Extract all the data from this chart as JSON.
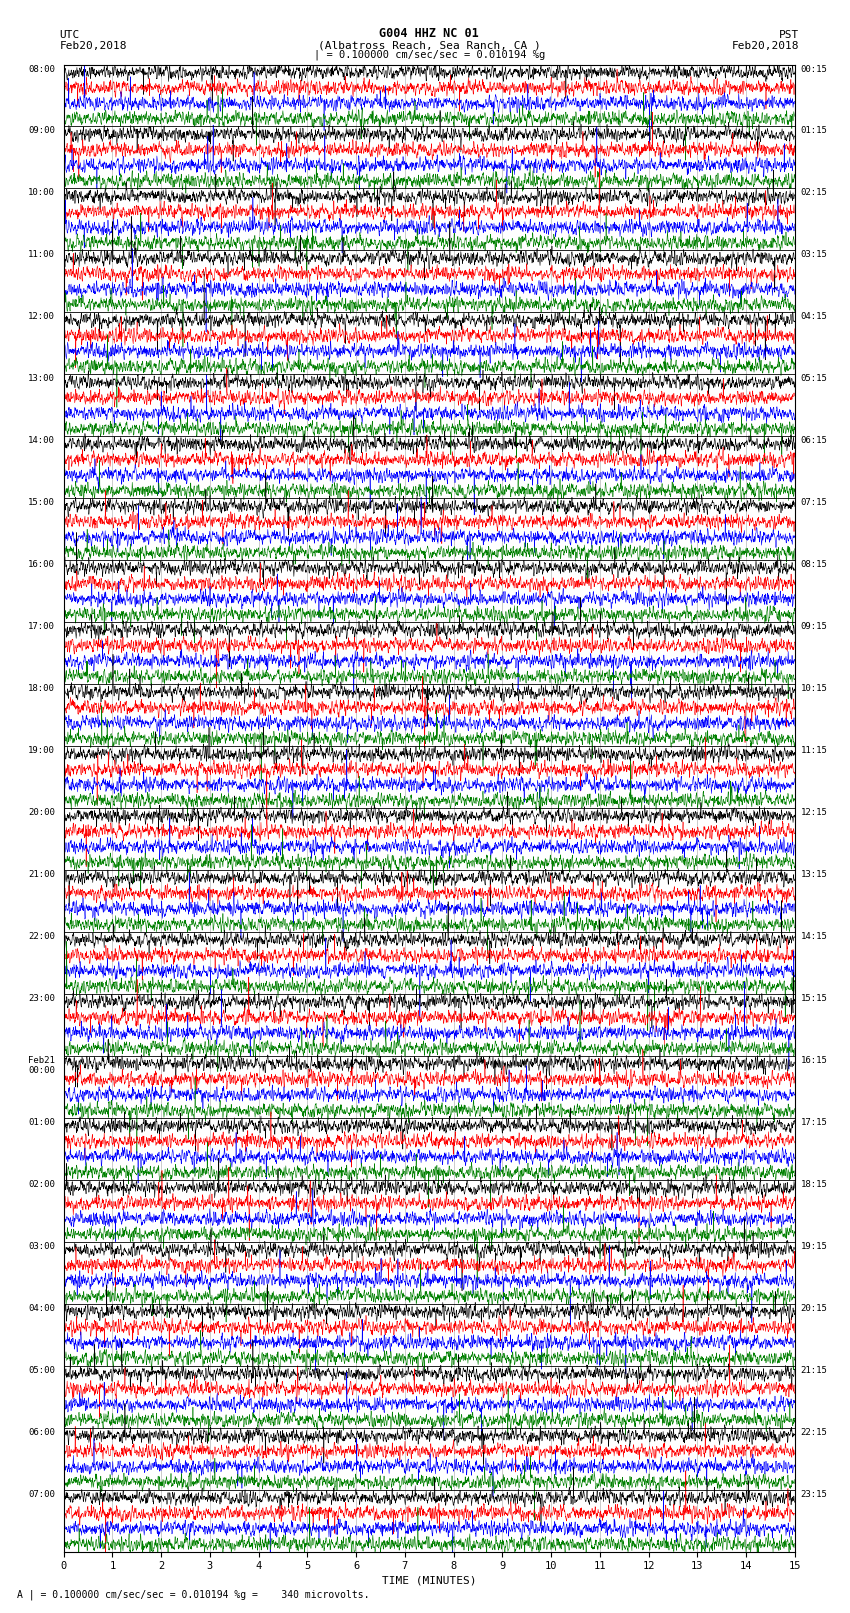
{
  "title_line1": "G004 HHZ NC 01",
  "title_line2": "(Albatross Reach, Sea Ranch, CA )",
  "scale_text": "| = 0.100000 cm/sec/sec = 0.010194 %g",
  "footer_text": "A | = 0.100000 cm/sec/sec = 0.010194 %g =    340 microvolts.",
  "left_label_top": "UTC",
  "left_label_date": "Feb20,2018",
  "right_label_top": "PST",
  "right_label_date": "Feb20,2018",
  "xlabel": "TIME (MINUTES)",
  "trace_colors": [
    "black",
    "red",
    "blue",
    "green"
  ],
  "utc_times": [
    "08:00",
    "09:00",
    "10:00",
    "11:00",
    "12:00",
    "13:00",
    "14:00",
    "15:00",
    "16:00",
    "17:00",
    "18:00",
    "19:00",
    "20:00",
    "21:00",
    "22:00",
    "23:00",
    "Feb21\n00:00",
    "01:00",
    "02:00",
    "03:00",
    "04:00",
    "05:00",
    "06:00",
    "07:00"
  ],
  "pst_times": [
    "00:15",
    "01:15",
    "02:15",
    "03:15",
    "04:15",
    "05:15",
    "06:15",
    "07:15",
    "08:15",
    "09:15",
    "10:15",
    "11:15",
    "12:15",
    "13:15",
    "14:15",
    "15:15",
    "16:15",
    "17:15",
    "18:15",
    "19:15",
    "20:15",
    "21:15",
    "22:15",
    "23:15"
  ],
  "n_rows": 24,
  "traces_per_row": 4,
  "xmin": 0,
  "xmax": 15,
  "bg_color": "white",
  "trace_amplitude": 0.09,
  "spike_probability": 0.008,
  "spike_amplitude": 0.25,
  "n_points": 3000
}
